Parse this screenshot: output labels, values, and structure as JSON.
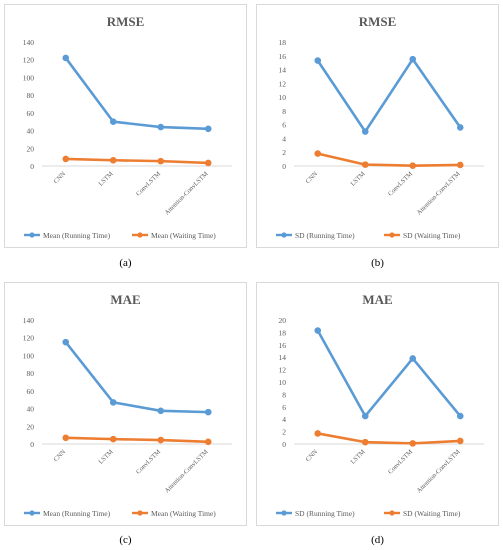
{
  "captions": [
    "(a)",
    "(b)",
    "(c)",
    "(d)"
  ],
  "colors": {
    "running": "#5b9bd5",
    "waiting": "#ed7d31"
  },
  "chart_data": [
    {
      "type": "line",
      "title": "RMSE",
      "categories": [
        "CNN",
        "LSTM",
        "ConvLSTM",
        "Attention-ConvLSTM"
      ],
      "ylim": [
        0,
        140
      ],
      "yticks": [
        0,
        20,
        40,
        60,
        80,
        100,
        120,
        140
      ],
      "series": [
        {
          "name": "Mean (Running Time)",
          "color": "#5b9bd5",
          "values": [
            122,
            50,
            44,
            42
          ]
        },
        {
          "name": "Mean (Waiting Time)",
          "color": "#ed7d31",
          "values": [
            8,
            6.5,
            5.5,
            3.5
          ]
        }
      ],
      "legend": "bottom",
      "grid": false
    },
    {
      "type": "line",
      "title": "RMSE",
      "categories": [
        "CNN",
        "LSTM",
        "ConvLSTM",
        "Attention-ConvLSTM"
      ],
      "ylim": [
        0,
        18
      ],
      "yticks": [
        0,
        2,
        4,
        6,
        8,
        10,
        12,
        14,
        16,
        18
      ],
      "series": [
        {
          "name": "SD (Running Time)",
          "color": "#5b9bd5",
          "values": [
            15.3,
            5.0,
            15.5,
            5.6
          ]
        },
        {
          "name": "SD (Waiting Time)",
          "color": "#ed7d31",
          "values": [
            1.8,
            0.2,
            0.05,
            0.15
          ]
        }
      ],
      "legend": "bottom",
      "grid": false
    },
    {
      "type": "line",
      "title": "MAE",
      "categories": [
        "CNN",
        "LSTM",
        "ConvLSTM",
        "Attention-ConvLSTM"
      ],
      "ylim": [
        0,
        140
      ],
      "yticks": [
        0,
        20,
        40,
        60,
        80,
        100,
        120,
        140
      ],
      "series": [
        {
          "name": "Mean (Running Time)",
          "color": "#5b9bd5",
          "values": [
            115,
            47,
            37.5,
            36
          ]
        },
        {
          "name": "Mean (Waiting Time)",
          "color": "#ed7d31",
          "values": [
            7,
            5.5,
            4.5,
            2.5
          ]
        }
      ],
      "legend": "bottom",
      "grid": false
    },
    {
      "type": "line",
      "title": "MAE",
      "categories": [
        "CNN",
        "LSTM",
        "ConvLSTM",
        "Attention-ConvLSTM"
      ],
      "ylim": [
        0,
        20
      ],
      "yticks": [
        0,
        2,
        4,
        6,
        8,
        10,
        12,
        14,
        16,
        18,
        20
      ],
      "series": [
        {
          "name": "SD (Running Time)",
          "color": "#5b9bd5",
          "values": [
            18.3,
            4.5,
            13.8,
            4.5
          ]
        },
        {
          "name": "SD (Waiting Time)",
          "color": "#ed7d31",
          "values": [
            1.7,
            0.3,
            0.1,
            0.5
          ]
        }
      ],
      "legend": "bottom",
      "grid": false
    }
  ]
}
